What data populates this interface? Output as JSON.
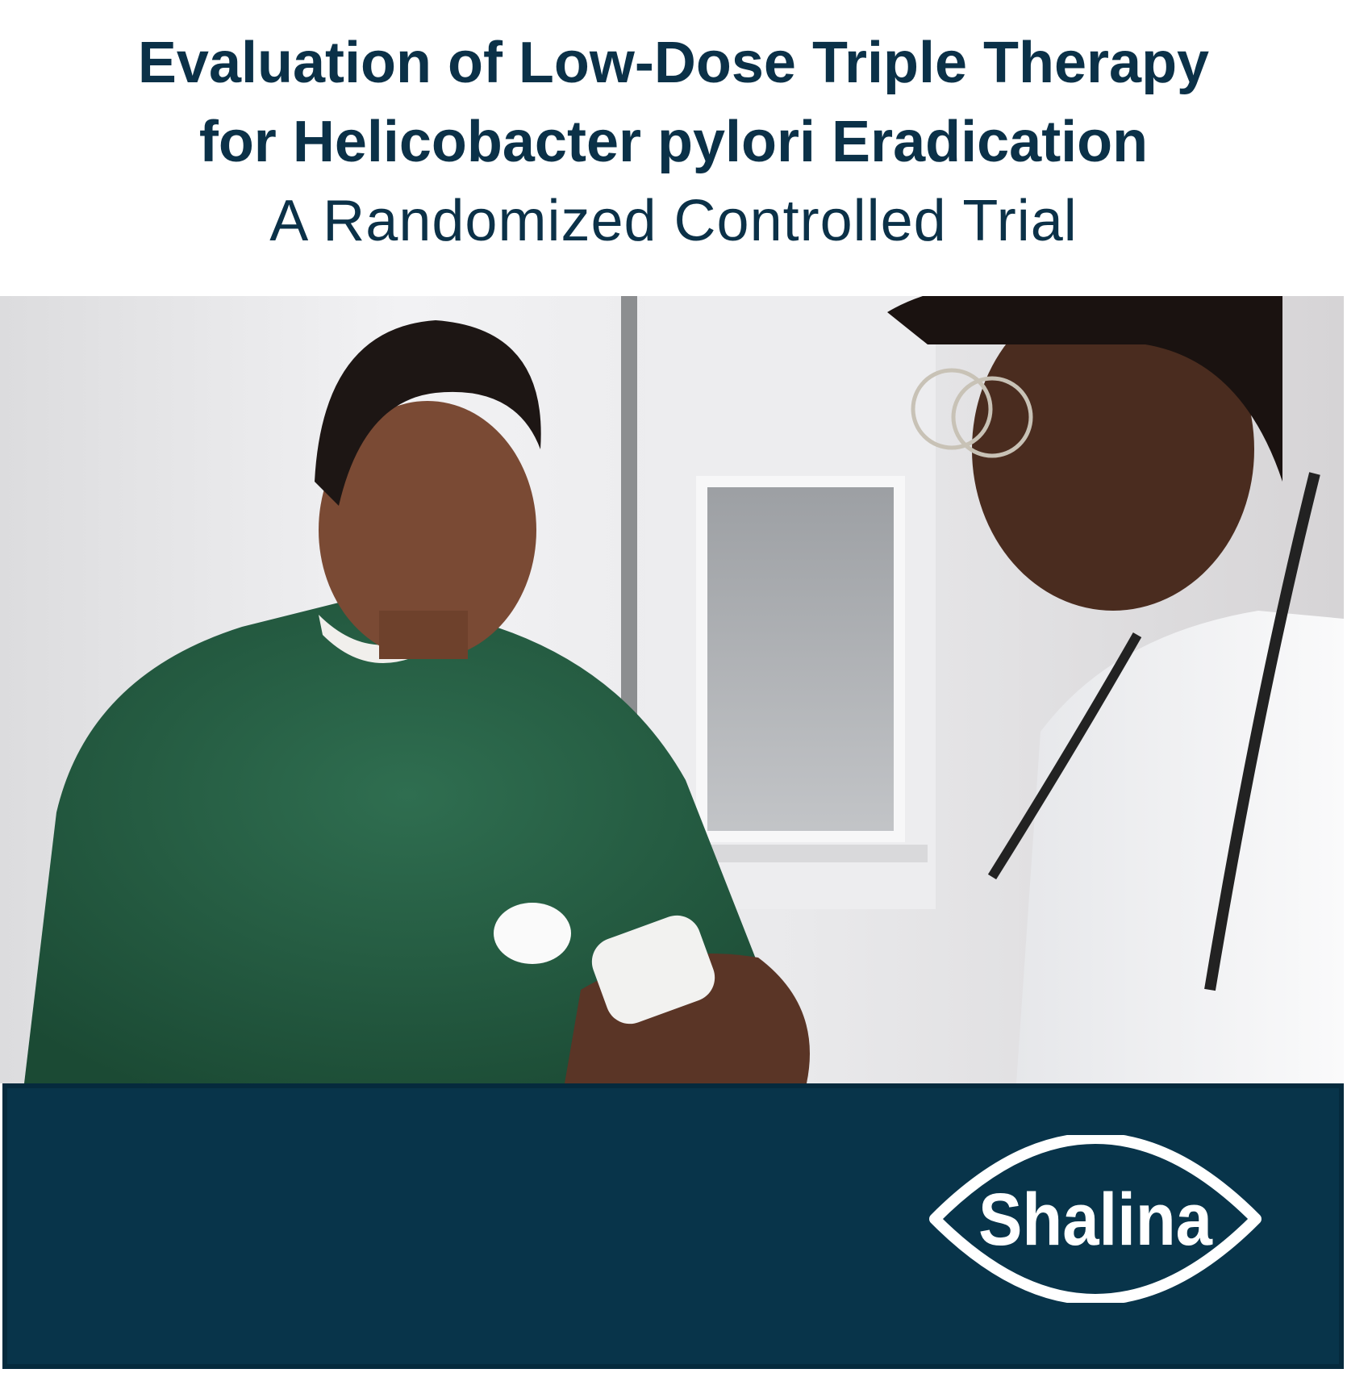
{
  "header": {
    "title_line1": "Evaluation of Low-Dose Triple Therapy",
    "title_line2": "for Helicobacter pylori Eradication",
    "subtitle": "A Randomized Controlled Trial"
  },
  "footer": {
    "logo_text": "Shalina"
  },
  "colors": {
    "title": "#0b3148",
    "band": "#08344a",
    "logo": "#ffffff"
  }
}
